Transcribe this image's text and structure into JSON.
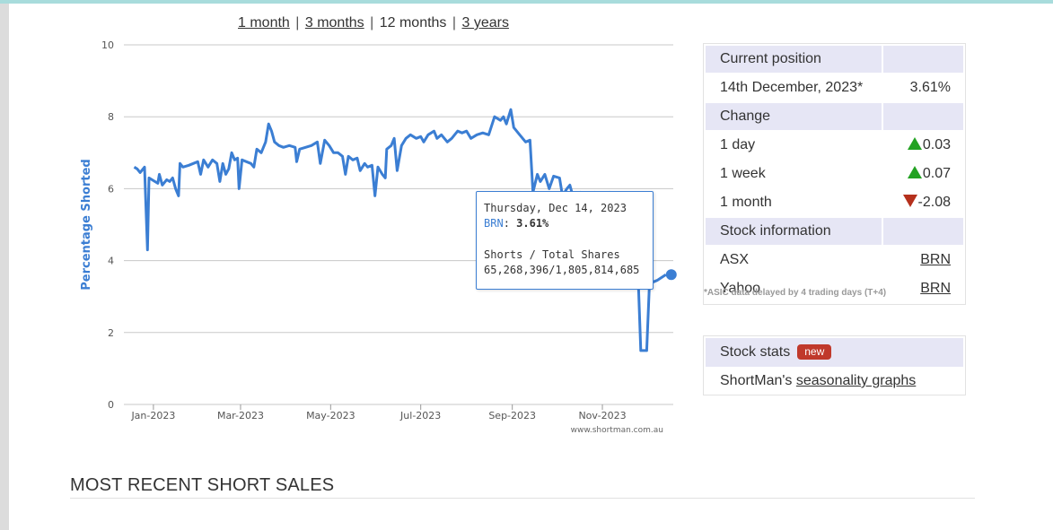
{
  "range_links": {
    "items": [
      {
        "label": "1 month",
        "active": false
      },
      {
        "label": "3 months",
        "active": false
      },
      {
        "label": "12 months",
        "active": true
      },
      {
        "label": "3 years",
        "active": false
      }
    ]
  },
  "chart_data": {
    "type": "line",
    "title": "",
    "xlabel": "",
    "ylabel": "Percentage Shorted",
    "ylim": [
      0,
      10
    ],
    "yticks": [
      "0",
      "2",
      "4",
      "6",
      "8",
      "10"
    ],
    "xticks": [
      "Jan-2023",
      "Mar-2023",
      "May-2023",
      "Jul-2023",
      "Sep-2023",
      "Nov-2023"
    ],
    "grid": true,
    "credit": "www.shortman.com.au",
    "line_color": "#3b7ed3",
    "series": [
      {
        "values": [
          [
            "2022-12-19",
            6.6
          ],
          [
            "2022-12-21",
            6.55
          ],
          [
            "2022-12-23",
            6.45
          ],
          [
            "2022-12-26",
            6.6
          ],
          [
            "2022-12-28",
            4.3
          ],
          [
            "2022-12-29",
            6.3
          ],
          [
            "2023-01-02",
            6.2
          ],
          [
            "2023-01-04",
            6.15
          ],
          [
            "2023-01-05",
            6.4
          ],
          [
            "2023-01-07",
            6.1
          ],
          [
            "2023-01-10",
            6.25
          ],
          [
            "2023-01-12",
            6.2
          ],
          [
            "2023-01-14",
            6.3
          ],
          [
            "2023-01-16",
            6.0
          ],
          [
            "2023-01-18",
            5.8
          ],
          [
            "2023-01-19",
            6.7
          ],
          [
            "2023-01-21",
            6.6
          ],
          [
            "2023-01-25",
            6.65
          ],
          [
            "2023-01-28",
            6.7
          ],
          [
            "2023-01-31",
            6.75
          ],
          [
            "2023-02-02",
            6.4
          ],
          [
            "2023-02-04",
            6.8
          ],
          [
            "2023-02-07",
            6.6
          ],
          [
            "2023-02-10",
            6.8
          ],
          [
            "2023-02-13",
            6.7
          ],
          [
            "2023-02-15",
            6.2
          ],
          [
            "2023-02-17",
            6.7
          ],
          [
            "2023-02-19",
            6.4
          ],
          [
            "2023-02-21",
            6.55
          ],
          [
            "2023-02-23",
            7.0
          ],
          [
            "2023-02-25",
            6.8
          ],
          [
            "2023-02-27",
            6.85
          ],
          [
            "2023-02-28",
            6.0
          ],
          [
            "2023-03-02",
            6.8
          ],
          [
            "2023-03-05",
            6.75
          ],
          [
            "2023-03-08",
            6.7
          ],
          [
            "2023-03-10",
            6.6
          ],
          [
            "2023-03-12",
            7.1
          ],
          [
            "2023-03-15",
            7.0
          ],
          [
            "2023-03-18",
            7.3
          ],
          [
            "2023-03-20",
            7.8
          ],
          [
            "2023-03-22",
            7.6
          ],
          [
            "2023-03-24",
            7.3
          ],
          [
            "2023-03-27",
            7.2
          ],
          [
            "2023-03-30",
            7.15
          ],
          [
            "2023-04-03",
            7.2
          ],
          [
            "2023-04-07",
            7.15
          ],
          [
            "2023-04-08",
            6.75
          ],
          [
            "2023-04-10",
            7.1
          ],
          [
            "2023-04-14",
            7.15
          ],
          [
            "2023-04-18",
            7.2
          ],
          [
            "2023-04-22",
            7.3
          ],
          [
            "2023-04-24",
            6.7
          ],
          [
            "2023-04-27",
            7.35
          ],
          [
            "2023-04-30",
            7.2
          ],
          [
            "2023-05-03",
            7.0
          ],
          [
            "2023-05-06",
            7.0
          ],
          [
            "2023-05-09",
            6.9
          ],
          [
            "2023-05-11",
            6.4
          ],
          [
            "2023-05-13",
            6.9
          ],
          [
            "2023-05-16",
            6.8
          ],
          [
            "2023-05-19",
            6.85
          ],
          [
            "2023-05-21",
            6.5
          ],
          [
            "2023-05-24",
            6.7
          ],
          [
            "2023-05-26",
            6.6
          ],
          [
            "2023-05-29",
            6.65
          ],
          [
            "2023-05-31",
            5.8
          ],
          [
            "2023-06-02",
            6.6
          ],
          [
            "2023-06-05",
            6.4
          ],
          [
            "2023-06-07",
            6.3
          ],
          [
            "2023-06-08",
            7.1
          ],
          [
            "2023-06-11",
            7.2
          ],
          [
            "2023-06-13",
            7.4
          ],
          [
            "2023-06-15",
            6.5
          ],
          [
            "2023-06-18",
            7.2
          ],
          [
            "2023-06-21",
            7.4
          ],
          [
            "2023-06-24",
            7.5
          ],
          [
            "2023-06-28",
            7.4
          ],
          [
            "2023-07-01",
            7.45
          ],
          [
            "2023-07-03",
            7.3
          ],
          [
            "2023-07-06",
            7.5
          ],
          [
            "2023-07-10",
            7.6
          ],
          [
            "2023-07-12",
            7.4
          ],
          [
            "2023-07-15",
            7.5
          ],
          [
            "2023-07-19",
            7.3
          ],
          [
            "2023-07-22",
            7.4
          ],
          [
            "2023-07-26",
            7.6
          ],
          [
            "2023-07-29",
            7.55
          ],
          [
            "2023-08-01",
            7.6
          ],
          [
            "2023-08-04",
            7.4
          ],
          [
            "2023-08-08",
            7.5
          ],
          [
            "2023-08-12",
            7.55
          ],
          [
            "2023-08-16",
            7.5
          ],
          [
            "2023-08-20",
            8.0
          ],
          [
            "2023-08-24",
            7.9
          ],
          [
            "2023-08-26",
            8.0
          ],
          [
            "2023-08-28",
            7.8
          ],
          [
            "2023-08-31",
            8.2
          ],
          [
            "2023-09-02",
            7.7
          ],
          [
            "2023-09-06",
            7.5
          ],
          [
            "2023-09-10",
            7.3
          ],
          [
            "2023-09-13",
            7.35
          ],
          [
            "2023-09-15",
            5.9
          ],
          [
            "2023-09-18",
            6.4
          ],
          [
            "2023-09-20",
            6.2
          ],
          [
            "2023-09-23",
            6.4
          ],
          [
            "2023-09-26",
            6.0
          ],
          [
            "2023-09-29",
            6.35
          ],
          [
            "2023-10-03",
            6.3
          ],
          [
            "2023-10-05",
            5.8
          ],
          [
            "2023-10-08",
            6.0
          ],
          [
            "2023-10-10",
            6.1
          ],
          [
            "2023-10-12",
            5.8
          ],
          [
            "2023-10-17",
            5.9
          ],
          [
            "2023-10-22",
            5.85
          ],
          [
            "2023-10-27",
            5.9
          ],
          [
            "2023-11-01",
            5.85
          ],
          [
            "2023-11-06",
            5.9
          ],
          [
            "2023-11-11",
            5.85
          ],
          [
            "2023-11-16",
            5.8
          ],
          [
            "2023-11-19",
            5.3
          ],
          [
            "2023-11-21",
            5.5
          ],
          [
            "2023-11-23",
            4.7
          ],
          [
            "2023-11-25",
            3.8
          ],
          [
            "2023-11-27",
            1.5
          ],
          [
            "2023-12-01",
            1.5
          ],
          [
            "2023-12-03",
            3.5
          ],
          [
            "2023-12-05",
            3.4
          ],
          [
            "2023-12-08",
            3.45
          ],
          [
            "2023-12-14",
            3.61
          ]
        ]
      }
    ],
    "highlight": {
      "date": "2023-12-14",
      "value": 3.61
    }
  },
  "tooltip": {
    "date": "Thursday, Dec 14, 2023",
    "series_label": "BRN",
    "value": "3.61%",
    "shorts_label": "Shorts / Total Shares",
    "shorts_value": "65,268,396/1,805,814,685"
  },
  "infobox": {
    "current_position_header": "Current position",
    "date": "14th December, 2023*",
    "percent": "3.61%",
    "change_header": "Change",
    "day_label": "1 day",
    "day_value": "0.03",
    "week_label": "1 week",
    "week_value": "0.07",
    "month_label": "1 month",
    "month_value": "-2.08",
    "stock_info_header": "Stock information",
    "asx_label": "ASX",
    "asx_link": "BRN",
    "yahoo_label": "Yahoo",
    "yahoo_link": "BRN",
    "up_color": "#22a222",
    "down_color": "#b5301c",
    "header_bg": "#e6e6f5"
  },
  "asic_note": "*ASIC data delayed by 4 trading days (T+4)",
  "stock_stats": {
    "header": "Stock stats",
    "badge": "new",
    "text_prefix": "ShortMan's ",
    "link": "seasonality graphs"
  },
  "section_title": "MOST RECENT SHORT SALES"
}
